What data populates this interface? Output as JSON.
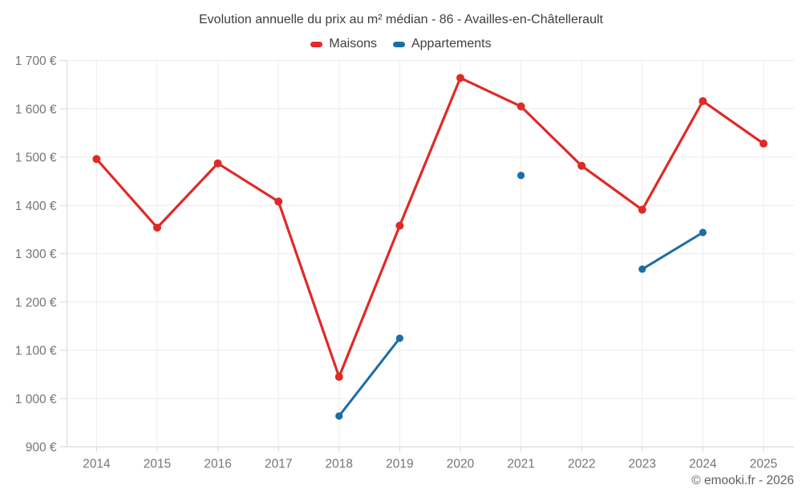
{
  "chart_data": {
    "type": "line",
    "title": "Evolution annuelle du prix au m² médian - 86 - Availles-en-Châtellerault",
    "x_labels": [
      "2014",
      "2015",
      "2016",
      "2017",
      "2018",
      "2019",
      "2020",
      "2021",
      "2022",
      "2023",
      "2024",
      "2025"
    ],
    "series": [
      {
        "name": "Maisons",
        "color": "#e02a26",
        "values": [
          1496,
          1354,
          1487,
          1408,
          1045,
          1358,
          1664,
          1605,
          1482,
          1391,
          1616,
          1528
        ]
      },
      {
        "name": "Appartements",
        "color": "#1c6da4",
        "values": [
          null,
          null,
          null,
          null,
          964,
          1125,
          null,
          1462,
          null,
          1268,
          1344,
          null
        ]
      }
    ],
    "ylim": [
      900,
      1700
    ],
    "y_tick_values": [
      900,
      1000,
      1100,
      1200,
      1300,
      1400,
      1500,
      1600,
      1700
    ],
    "y_tick_labels": [
      "900 €",
      "1 000 €",
      "1 100 €",
      "1 200 €",
      "1 300 €",
      "1 400 €",
      "1 500 €",
      "1 600 €",
      "1 700 €"
    ],
    "xlabel": "",
    "ylabel": "",
    "grid": true,
    "legend_position": "top",
    "colors": {
      "gridline": "#ececec",
      "axis": "#d8d8d8",
      "tick_text": "#757575",
      "title_text": "#3e3e3e"
    }
  },
  "footer": {
    "attribution": "© emooki.fr - 2026"
  }
}
